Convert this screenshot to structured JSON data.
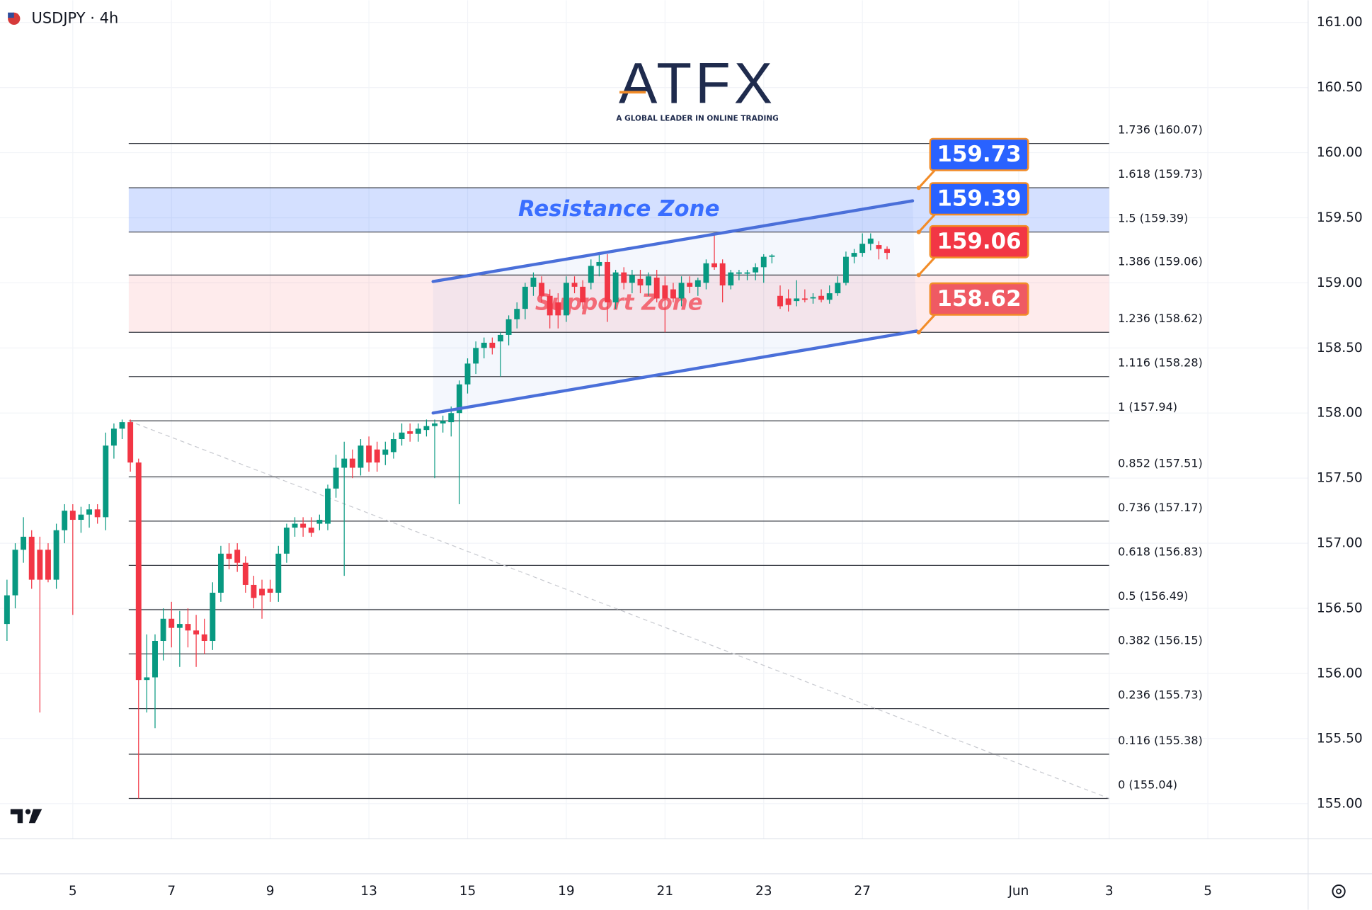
{
  "chart_data": {
    "type": "candlestick",
    "title": "USDJPY · 4h",
    "logo": {
      "name": "ATFX",
      "tagline": "A GLOBAL LEADER IN ONLINE TRADING"
    },
    "xlim": [
      -0.85,
      158.19
    ],
    "ylim": [
      154.73,
      161.17
    ],
    "grid": true,
    "up_color": "#089981",
    "down_color": "#f23645",
    "xticks": [
      {
        "value": 8,
        "label": "5"
      },
      {
        "value": 20,
        "label": "7"
      },
      {
        "value": 32,
        "label": "9"
      },
      {
        "value": 44,
        "label": "13"
      },
      {
        "value": 56,
        "label": "15"
      },
      {
        "value": 68,
        "label": "19"
      },
      {
        "value": 80,
        "label": "21"
      },
      {
        "value": 92,
        "label": "23"
      },
      {
        "value": 104,
        "label": "27"
      },
      {
        "value": 123,
        "label": "Jun"
      },
      {
        "value": 134,
        "label": "3"
      },
      {
        "value": 146,
        "label": "5"
      }
    ],
    "yticks": [
      {
        "value": 155,
        "label": "155.00"
      },
      {
        "value": 155.5,
        "label": "155.50"
      },
      {
        "value": 156,
        "label": "156.00"
      },
      {
        "value": 156.5,
        "label": "156.50"
      },
      {
        "value": 157,
        "label": "157.00"
      },
      {
        "value": 157.5,
        "label": "157.50"
      },
      {
        "value": 158,
        "label": "158.00"
      },
      {
        "value": 158.5,
        "label": "158.50"
      },
      {
        "value": 159,
        "label": "159.00"
      },
      {
        "value": 159.5,
        "label": "159.50"
      },
      {
        "value": 160,
        "label": "160.00"
      },
      {
        "value": 160.5,
        "label": "160.50"
      },
      {
        "value": 161,
        "label": "161.00"
      }
    ],
    "ohlc": {
      "x": [
        0,
        1,
        2,
        3,
        4,
        5,
        6,
        7,
        8,
        9,
        10,
        11,
        12,
        13,
        14,
        15,
        16,
        17,
        18,
        19,
        20,
        21,
        22,
        23,
        24,
        25,
        26,
        27,
        28,
        29,
        30,
        31,
        32,
        33,
        34,
        35,
        36,
        37,
        38,
        39,
        40,
        41,
        42,
        43,
        44,
        45,
        46,
        47,
        48,
        49,
        50,
        51,
        52,
        53,
        54,
        55,
        56,
        57,
        58,
        59,
        60,
        61,
        62,
        63,
        64,
        65,
        66,
        67,
        68,
        69,
        70,
        71,
        72,
        73,
        74,
        75,
        76,
        77,
        78,
        79,
        80,
        81,
        82,
        83,
        84,
        85,
        86,
        87,
        88,
        89,
        90,
        91,
        92,
        93,
        94,
        95,
        96,
        97,
        98,
        99,
        100,
        101,
        102,
        103,
        104,
        105,
        106,
        107
      ],
      "open": [
        156.38,
        156.6,
        156.95,
        157.05,
        156.95,
        156.95,
        156.72,
        157.1,
        157.25,
        157.18,
        157.22,
        157.26,
        157.2,
        157.75,
        157.88,
        157.93,
        157.62,
        155.95,
        155.97,
        156.25,
        156.42,
        156.35,
        156.38,
        156.33,
        156.3,
        156.25,
        156.62,
        156.92,
        156.95,
        156.85,
        156.68,
        156.65,
        156.65,
        156.62,
        156.92,
        157.12,
        157.15,
        157.12,
        157.15,
        157.15,
        157.42,
        157.58,
        157.65,
        157.58,
        157.75,
        157.72,
        157.68,
        157.7,
        157.8,
        157.86,
        157.84,
        157.87,
        157.9,
        157.92,
        157.93,
        158.0,
        158.22,
        158.38,
        158.5,
        158.54,
        158.55,
        158.6,
        158.72,
        158.8,
        158.97,
        159.0,
        158.9,
        158.85,
        158.75,
        159.0,
        158.97,
        159.0,
        159.13,
        159.16,
        158.85,
        159.08,
        159.0,
        159.03,
        158.98,
        159.04,
        158.98,
        158.95,
        158.88,
        159.0,
        158.97,
        159.0,
        159.15,
        159.15,
        158.98,
        159.07,
        159.07,
        159.08,
        159.12,
        159.2,
        158.9,
        158.88,
        158.86,
        158.88,
        158.88,
        158.9,
        158.87,
        158.92,
        159.0,
        159.2,
        159.23,
        159.3,
        159.29,
        159.26
      ],
      "high": [
        156.72,
        157.0,
        157.2,
        157.1,
        157.05,
        157.0,
        157.15,
        157.3,
        157.3,
        157.28,
        157.3,
        157.3,
        157.85,
        157.92,
        157.95,
        157.95,
        157.65,
        156.3,
        156.3,
        156.5,
        156.55,
        156.48,
        156.5,
        156.45,
        156.42,
        156.7,
        156.98,
        157.0,
        157.0,
        156.9,
        156.75,
        156.72,
        156.72,
        156.98,
        157.15,
        157.2,
        157.2,
        157.2,
        157.22,
        157.45,
        157.68,
        157.78,
        157.72,
        157.8,
        157.82,
        157.78,
        157.78,
        157.85,
        157.92,
        157.92,
        157.92,
        157.95,
        157.95,
        157.98,
        158.05,
        158.25,
        158.42,
        158.55,
        158.58,
        158.58,
        158.62,
        158.75,
        158.85,
        159.0,
        159.08,
        159.05,
        158.95,
        158.92,
        159.05,
        159.05,
        159.02,
        159.18,
        159.22,
        159.22,
        159.1,
        159.12,
        159.1,
        159.1,
        159.08,
        159.1,
        159.05,
        159.0,
        159.05,
        159.05,
        159.04,
        159.18,
        159.38,
        159.18,
        159.1,
        159.1,
        159.1,
        159.15,
        159.22,
        159.22,
        158.98,
        158.95,
        159.02,
        158.95,
        158.92,
        158.95,
        158.98,
        159.05,
        159.24,
        159.26,
        159.38,
        159.38,
        159.32,
        159.28
      ],
      "low": [
        156.25,
        156.5,
        156.85,
        156.65,
        155.7,
        156.7,
        156.65,
        157.0,
        156.45,
        157.08,
        157.12,
        157.15,
        157.1,
        157.65,
        157.8,
        157.55,
        155.04,
        155.7,
        155.58,
        156.1,
        156.2,
        156.05,
        156.2,
        156.05,
        156.15,
        156.18,
        156.55,
        156.8,
        156.78,
        156.62,
        156.5,
        156.42,
        156.55,
        156.55,
        156.85,
        157.05,
        157.05,
        157.05,
        157.1,
        157.1,
        157.35,
        156.75,
        157.5,
        157.52,
        157.55,
        157.55,
        157.6,
        157.65,
        157.75,
        157.78,
        157.78,
        157.82,
        157.5,
        157.85,
        157.82,
        157.3,
        158.15,
        158.3,
        158.42,
        158.45,
        158.28,
        158.52,
        158.65,
        158.72,
        158.9,
        158.85,
        158.65,
        158.65,
        158.7,
        158.92,
        158.8,
        158.95,
        159.05,
        158.7,
        158.8,
        158.95,
        158.92,
        158.92,
        158.9,
        158.85,
        158.62,
        158.85,
        158.82,
        158.92,
        158.9,
        158.95,
        159.1,
        158.85,
        158.95,
        159.02,
        159.02,
        159.02,
        159.0,
        159.15,
        158.8,
        158.78,
        158.82,
        158.85,
        158.84,
        158.85,
        158.84,
        158.9,
        158.98,
        159.15,
        159.2,
        159.25,
        159.18,
        159.18
      ],
      "close": [
        156.6,
        156.95,
        157.05,
        156.72,
        156.72,
        156.72,
        157.1,
        157.25,
        157.18,
        157.22,
        157.26,
        157.2,
        157.75,
        157.88,
        157.93,
        157.62,
        155.95,
        155.97,
        156.25,
        156.42,
        156.35,
        156.38,
        156.33,
        156.3,
        156.25,
        156.62,
        156.92,
        156.88,
        156.85,
        156.68,
        156.58,
        156.6,
        156.62,
        156.92,
        157.12,
        157.15,
        157.12,
        157.08,
        157.18,
        157.42,
        157.58,
        157.65,
        157.58,
        157.75,
        157.62,
        157.62,
        157.72,
        157.8,
        157.85,
        157.84,
        157.88,
        157.9,
        157.92,
        157.94,
        158.0,
        158.22,
        158.38,
        158.5,
        158.54,
        158.5,
        158.6,
        158.72,
        158.8,
        158.97,
        159.04,
        158.9,
        158.75,
        158.75,
        159.0,
        158.97,
        158.85,
        159.13,
        159.16,
        158.85,
        159.08,
        159.0,
        159.06,
        158.98,
        159.05,
        158.88,
        158.88,
        158.88,
        159.0,
        158.97,
        159.02,
        159.15,
        159.12,
        158.98,
        159.08,
        159.08,
        159.08,
        159.12,
        159.2,
        159.21,
        158.82,
        158.83,
        158.88,
        158.87,
        158.89,
        158.87,
        158.92,
        159.0,
        159.2,
        159.23,
        159.3,
        159.34,
        159.26,
        159.23
      ]
    },
    "fib_xrange": [
      14.8,
      134.0
    ],
    "fib_levels": [
      {
        "value": 160.07,
        "label": "1.736 (160.07)"
      },
      {
        "value": 159.73,
        "label": "1.618 (159.73)"
      },
      {
        "value": 159.39,
        "label": "1.5 (159.39)"
      },
      {
        "value": 159.06,
        "label": "1.386 (159.06)"
      },
      {
        "value": 158.62,
        "label": "1.236 (158.62)"
      },
      {
        "value": 158.28,
        "label": "1.116 (158.28)"
      },
      {
        "value": 157.94,
        "label": "1 (157.94)"
      },
      {
        "value": 157.51,
        "label": "0.852 (157.51)"
      },
      {
        "value": 157.17,
        "label": "0.736 (157.17)"
      },
      {
        "value": 156.83,
        "label": "0.618 (156.83)"
      },
      {
        "value": 156.49,
        "label": "0.5 (156.49)"
      },
      {
        "value": 156.15,
        "label": "0.382 (156.15)"
      },
      {
        "value": 155.73,
        "label": "0.236 (155.73)"
      },
      {
        "value": 155.38,
        "label": "0.116 (155.38)"
      },
      {
        "value": 155.04,
        "label": "0 (155.04)"
      }
    ],
    "zones": [
      {
        "name": "Resistance Zone",
        "from": 159.39,
        "to": 159.73,
        "color": "#2962ff"
      },
      {
        "name": "Support Zone",
        "from": 158.62,
        "to": 159.06,
        "color": "#f23645"
      }
    ],
    "channel": {
      "color": "#4a6fd9",
      "upper": {
        "x": [
          51.8,
          110.1
        ],
        "y": [
          159.01,
          159.63
        ]
      },
      "lower": {
        "x": [
          51.8,
          110.6
        ],
        "y": [
          158.0,
          158.63
        ]
      }
    },
    "callouts": [
      {
        "value": 159.73,
        "color": "#2962ff"
      },
      {
        "value": 159.39,
        "color": "#2962ff"
      },
      {
        "value": 159.06,
        "color": "#f23645"
      },
      {
        "value": 158.62,
        "color": "#ef5a63"
      }
    ]
  }
}
